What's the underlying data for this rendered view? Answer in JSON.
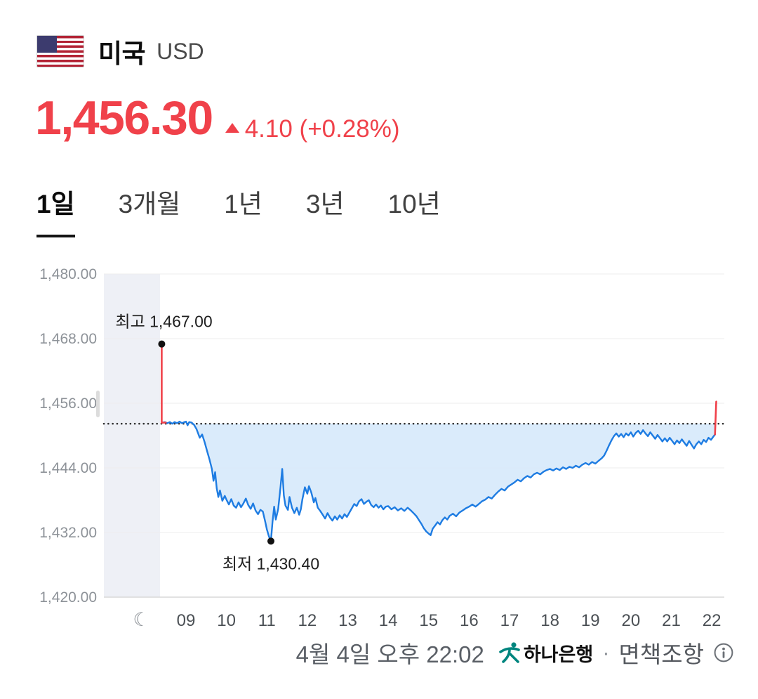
{
  "header": {
    "country": "미국",
    "currency": "USD"
  },
  "price": {
    "value": "1,456.30",
    "direction": "up",
    "change": "4.10 (+0.28%)"
  },
  "tabs": {
    "items": [
      {
        "label": "1일",
        "selected": true
      },
      {
        "label": "3개월",
        "selected": false
      },
      {
        "label": "1년",
        "selected": false
      },
      {
        "label": "3년",
        "selected": false
      },
      {
        "label": "10년",
        "selected": false
      }
    ]
  },
  "chart_data": {
    "type": "line",
    "x_unit": "hour-of-day",
    "x_range": [
      6.97,
      22.31
    ],
    "y_range": [
      1420,
      1480
    ],
    "y_ticks": [
      {
        "v": 1480,
        "label": "1,480.00"
      },
      {
        "v": 1468,
        "label": "1,468.00"
      },
      {
        "v": 1456,
        "label": "1,456.00"
      },
      {
        "v": 1444,
        "label": "1,444.00"
      },
      {
        "v": 1432,
        "label": "1,432.00"
      },
      {
        "v": 1420,
        "label": "1,420.00"
      }
    ],
    "x_ticks": [
      {
        "v": 7.9,
        "label": "☾",
        "moon": true
      },
      {
        "v": 9,
        "label": "09"
      },
      {
        "v": 10,
        "label": "10"
      },
      {
        "v": 11,
        "label": "11"
      },
      {
        "v": 12,
        "label": "12"
      },
      {
        "v": 13,
        "label": "13"
      },
      {
        "v": 14,
        "label": "14"
      },
      {
        "v": 15,
        "label": "15"
      },
      {
        "v": 16,
        "label": "16"
      },
      {
        "v": 17,
        "label": "17"
      },
      {
        "v": 18,
        "label": "18"
      },
      {
        "v": 19,
        "label": "19"
      },
      {
        "v": 20,
        "label": "20"
      },
      {
        "v": 21,
        "label": "21"
      },
      {
        "v": 22,
        "label": "22"
      }
    ],
    "prev_close": 1452.2,
    "night_region": [
      6.97,
      8.36
    ],
    "high": {
      "x": 8.4,
      "value": 1467.0,
      "label": "최고 1,467.00"
    },
    "low": {
      "x": 11.1,
      "value": 1430.4,
      "label": "최저 1,430.40"
    },
    "red_segments": [
      [
        [
          8.4,
          1467.0
        ],
        [
          8.4,
          1452.4
        ],
        [
          8.5,
          1452.4
        ]
      ],
      [
        [
          22.08,
          1450.2
        ],
        [
          22.11,
          1456.3
        ]
      ]
    ],
    "series": [
      [
        8.42,
        1452.4
      ],
      [
        8.48,
        1452.5
      ],
      [
        8.54,
        1452.3
      ],
      [
        8.6,
        1452.5
      ],
      [
        8.66,
        1452.2
      ],
      [
        8.72,
        1452.5
      ],
      [
        8.78,
        1452.3
      ],
      [
        8.84,
        1452.6
      ],
      [
        8.9,
        1452.3
      ],
      [
        8.96,
        1452.5
      ],
      [
        9.0,
        1452.6
      ],
      [
        9.04,
        1451.9
      ],
      [
        9.08,
        1452.5
      ],
      [
        9.14,
        1452.4
      ],
      [
        9.2,
        1452.0
      ],
      [
        9.26,
        1451.2
      ],
      [
        9.3,
        1450.4
      ],
      [
        9.34,
        1449.6
      ],
      [
        9.4,
        1450.2
      ],
      [
        9.46,
        1448.8
      ],
      [
        9.52,
        1447.2
      ],
      [
        9.58,
        1445.6
      ],
      [
        9.64,
        1443.8
      ],
      [
        9.68,
        1441.6
      ],
      [
        9.72,
        1443.2
      ],
      [
        9.76,
        1440.2
      ],
      [
        9.8,
        1438.6
      ],
      [
        9.84,
        1439.8
      ],
      [
        9.9,
        1437.9
      ],
      [
        9.96,
        1438.8
      ],
      [
        10.0,
        1438.1
      ],
      [
        10.06,
        1437.2
      ],
      [
        10.12,
        1438.2
      ],
      [
        10.18,
        1437.0
      ],
      [
        10.24,
        1436.6
      ],
      [
        10.3,
        1437.6
      ],
      [
        10.36,
        1436.7
      ],
      [
        10.42,
        1437.4
      ],
      [
        10.48,
        1438.3
      ],
      [
        10.54,
        1437.1
      ],
      [
        10.6,
        1436.4
      ],
      [
        10.66,
        1437.4
      ],
      [
        10.72,
        1436.1
      ],
      [
        10.78,
        1435.4
      ],
      [
        10.84,
        1436.2
      ],
      [
        10.9,
        1435.9
      ],
      [
        10.96,
        1434.0
      ],
      [
        11.0,
        1432.6
      ],
      [
        11.05,
        1431.3
      ],
      [
        11.1,
        1430.4
      ],
      [
        11.14,
        1434.0
      ],
      [
        11.18,
        1436.8
      ],
      [
        11.22,
        1434.4
      ],
      [
        11.28,
        1436.4
      ],
      [
        11.34,
        1440.6
      ],
      [
        11.38,
        1443.8
      ],
      [
        11.42,
        1438.9
      ],
      [
        11.46,
        1437.0
      ],
      [
        11.52,
        1436.2
      ],
      [
        11.56,
        1438.6
      ],
      [
        11.62,
        1436.6
      ],
      [
        11.68,
        1435.6
      ],
      [
        11.74,
        1436.6
      ],
      [
        11.8,
        1435.3
      ],
      [
        11.84,
        1436.3
      ],
      [
        11.88,
        1438.2
      ],
      [
        11.94,
        1440.4
      ],
      [
        12.0,
        1439.2
      ],
      [
        12.04,
        1440.6
      ],
      [
        12.1,
        1439.4
      ],
      [
        12.16,
        1437.6
      ],
      [
        12.2,
        1438.4
      ],
      [
        12.26,
        1436.6
      ],
      [
        12.32,
        1436.0
      ],
      [
        12.38,
        1435.3
      ],
      [
        12.44,
        1434.6
      ],
      [
        12.5,
        1435.6
      ],
      [
        12.56,
        1434.8
      ],
      [
        12.62,
        1434.2
      ],
      [
        12.68,
        1435.0
      ],
      [
        12.74,
        1434.4
      ],
      [
        12.8,
        1435.2
      ],
      [
        12.86,
        1434.6
      ],
      [
        12.92,
        1435.4
      ],
      [
        12.98,
        1434.9
      ],
      [
        13.04,
        1435.7
      ],
      [
        13.1,
        1436.5
      ],
      [
        13.16,
        1437.3
      ],
      [
        13.22,
        1436.9
      ],
      [
        13.28,
        1437.8
      ],
      [
        13.34,
        1438.2
      ],
      [
        13.4,
        1437.3
      ],
      [
        13.46,
        1437.7
      ],
      [
        13.52,
        1438.0
      ],
      [
        13.58,
        1437.1
      ],
      [
        13.64,
        1436.7
      ],
      [
        13.7,
        1437.2
      ],
      [
        13.76,
        1436.6
      ],
      [
        13.82,
        1437.0
      ],
      [
        13.88,
        1436.3
      ],
      [
        13.94,
        1436.8
      ],
      [
        14.0,
        1436.9
      ],
      [
        14.08,
        1436.3
      ],
      [
        14.16,
        1436.7
      ],
      [
        14.24,
        1436.1
      ],
      [
        14.32,
        1436.5
      ],
      [
        14.4,
        1436.0
      ],
      [
        14.48,
        1436.6
      ],
      [
        14.56,
        1436.1
      ],
      [
        14.64,
        1435.5
      ],
      [
        14.7,
        1435.0
      ],
      [
        14.76,
        1434.3
      ],
      [
        14.82,
        1433.6
      ],
      [
        14.88,
        1432.8
      ],
      [
        14.94,
        1432.2
      ],
      [
        15.0,
        1431.8
      ],
      [
        15.05,
        1431.5
      ],
      [
        15.1,
        1432.7
      ],
      [
        15.16,
        1433.3
      ],
      [
        15.22,
        1433.9
      ],
      [
        15.28,
        1433.5
      ],
      [
        15.34,
        1434.3
      ],
      [
        15.4,
        1434.8
      ],
      [
        15.46,
        1434.4
      ],
      [
        15.52,
        1435.1
      ],
      [
        15.6,
        1435.5
      ],
      [
        15.68,
        1435.0
      ],
      [
        15.76,
        1435.7
      ],
      [
        15.84,
        1436.1
      ],
      [
        15.92,
        1436.5
      ],
      [
        16.0,
        1436.8
      ],
      [
        16.08,
        1437.2
      ],
      [
        16.16,
        1436.8
      ],
      [
        16.24,
        1437.3
      ],
      [
        16.32,
        1437.8
      ],
      [
        16.4,
        1438.1
      ],
      [
        16.48,
        1438.6
      ],
      [
        16.56,
        1438.3
      ],
      [
        16.64,
        1439.0
      ],
      [
        16.72,
        1439.6
      ],
      [
        16.8,
        1440.1
      ],
      [
        16.88,
        1439.8
      ],
      [
        16.96,
        1440.5
      ],
      [
        17.04,
        1440.9
      ],
      [
        17.12,
        1441.3
      ],
      [
        17.2,
        1441.8
      ],
      [
        17.28,
        1441.5
      ],
      [
        17.36,
        1442.1
      ],
      [
        17.44,
        1442.5
      ],
      [
        17.52,
        1442.2
      ],
      [
        17.6,
        1442.8
      ],
      [
        17.68,
        1443.1
      ],
      [
        17.76,
        1442.8
      ],
      [
        17.84,
        1443.3
      ],
      [
        17.92,
        1443.6
      ],
      [
        18.0,
        1443.8
      ],
      [
        18.08,
        1443.5
      ],
      [
        18.16,
        1443.9
      ],
      [
        18.24,
        1443.6
      ],
      [
        18.32,
        1444.1
      ],
      [
        18.4,
        1443.8
      ],
      [
        18.48,
        1444.2
      ],
      [
        18.56,
        1444.0
      ],
      [
        18.64,
        1444.4
      ],
      [
        18.72,
        1444.1
      ],
      [
        18.8,
        1444.6
      ],
      [
        18.88,
        1444.9
      ],
      [
        18.96,
        1444.6
      ],
      [
        19.04,
        1445.1
      ],
      [
        19.12,
        1444.8
      ],
      [
        19.2,
        1445.3
      ],
      [
        19.28,
        1445.8
      ],
      [
        19.34,
        1446.3
      ],
      [
        19.4,
        1447.2
      ],
      [
        19.46,
        1448.2
      ],
      [
        19.52,
        1449.1
      ],
      [
        19.58,
        1449.9
      ],
      [
        19.64,
        1450.4
      ],
      [
        19.7,
        1449.8
      ],
      [
        19.76,
        1450.3
      ],
      [
        19.82,
        1449.7
      ],
      [
        19.88,
        1450.4
      ],
      [
        19.94,
        1450.0
      ],
      [
        20.0,
        1450.6
      ],
      [
        20.06,
        1449.8
      ],
      [
        20.12,
        1450.5
      ],
      [
        20.18,
        1450.9
      ],
      [
        20.24,
        1450.3
      ],
      [
        20.3,
        1451.0
      ],
      [
        20.36,
        1450.4
      ],
      [
        20.42,
        1449.9
      ],
      [
        20.48,
        1450.6
      ],
      [
        20.54,
        1450.0
      ],
      [
        20.6,
        1449.4
      ],
      [
        20.66,
        1450.1
      ],
      [
        20.72,
        1449.5
      ],
      [
        20.78,
        1448.9
      ],
      [
        20.84,
        1449.5
      ],
      [
        20.9,
        1448.9
      ],
      [
        20.96,
        1449.6
      ],
      [
        21.02,
        1449.0
      ],
      [
        21.08,
        1448.4
      ],
      [
        21.14,
        1449.1
      ],
      [
        21.2,
        1448.6
      ],
      [
        21.26,
        1449.3
      ],
      [
        21.32,
        1448.7
      ],
      [
        21.38,
        1448.1
      ],
      [
        21.44,
        1449.0
      ],
      [
        21.5,
        1448.3
      ],
      [
        21.56,
        1447.6
      ],
      [
        21.62,
        1448.4
      ],
      [
        21.68,
        1448.9
      ],
      [
        21.74,
        1448.4
      ],
      [
        21.8,
        1449.2
      ],
      [
        21.86,
        1448.8
      ],
      [
        21.92,
        1449.6
      ],
      [
        21.98,
        1449.2
      ],
      [
        22.04,
        1449.8
      ],
      [
        22.08,
        1450.2
      ]
    ],
    "colors": {
      "line": "#1e7ce2",
      "fill": "#d6e9fb",
      "night": "#eef0f6",
      "baseline": "#2e2e2e",
      "grid": "#ededed",
      "axis_line": "#d9d9d9",
      "axis_text": "#8d9298",
      "tick_text": "#4b5055",
      "red": "#f0414a",
      "dot": "#111111",
      "annotation_text": "#1f1f1f"
    }
  },
  "footer": {
    "timestamp": "4월 4일 오후 22:02",
    "bank_name": "하나은행",
    "separator": "·",
    "disclaimer": "면책조항"
  },
  "accent_colors": {
    "price_red": "#f0414a",
    "hana_teal": "#00857e"
  }
}
